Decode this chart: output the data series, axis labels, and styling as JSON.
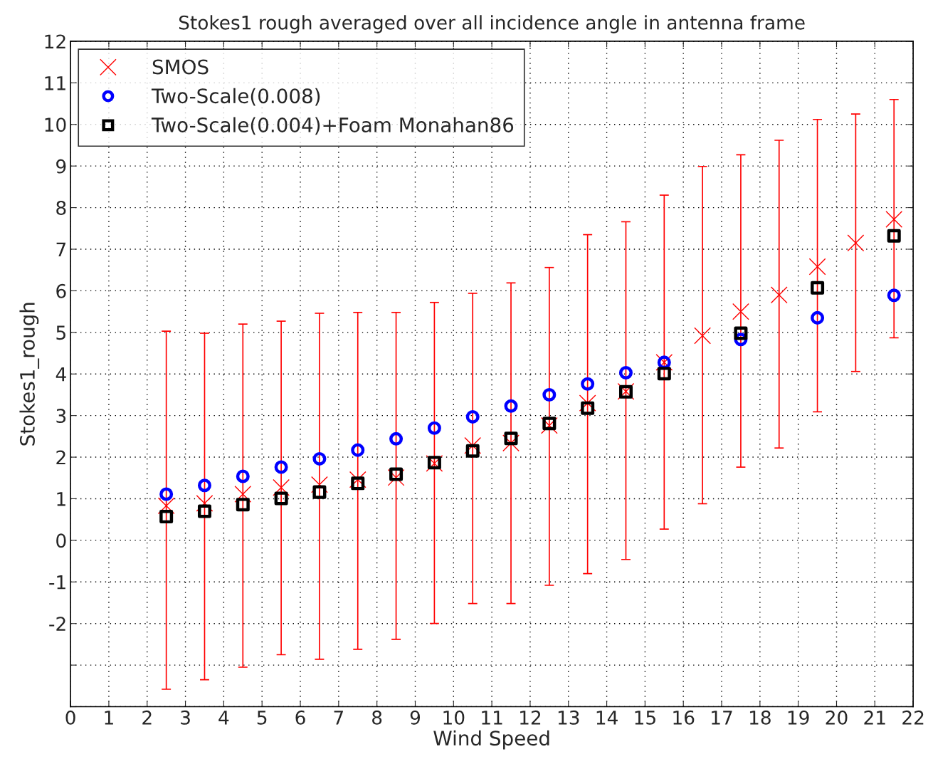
{
  "chart_data": {
    "type": "scatter",
    "title": "Stokes1 rough averaged over all incidence angle in antenna frame",
    "xlabel": "Wind Speed",
    "ylabel": "Stokes1_rough",
    "xlim": [
      0,
      22
    ],
    "xticks": [
      0,
      1,
      2,
      3,
      4,
      5,
      6,
      7,
      8,
      9,
      10,
      11,
      12,
      13,
      14,
      15,
      16,
      17,
      18,
      19,
      20,
      21,
      22
    ],
    "ylim": [
      -4,
      12
    ],
    "yticks": [
      {
        "value": -4,
        "label": null
      },
      {
        "value": -3,
        "label": null
      },
      -2,
      -1,
      0,
      1,
      2,
      3,
      4,
      5,
      6,
      7,
      8,
      9,
      10,
      11,
      12
    ],
    "grid": true,
    "legend": "top left",
    "series": [
      {
        "name": "SMOS",
        "color": "#ff0000",
        "marker": "cross",
        "x": [
          2.5,
          3.5,
          4.5,
          5.5,
          6.5,
          7.5,
          8.5,
          9.5,
          10.5,
          11.5,
          12.5,
          13.5,
          14.5,
          15.5,
          16.5,
          17.5,
          18.5,
          19.5,
          20.5,
          21.5
        ],
        "values": [
          0.83,
          0.89,
          1.11,
          1.27,
          1.34,
          1.46,
          1.51,
          1.85,
          2.28,
          2.34,
          2.76,
          3.3,
          3.58,
          4.28,
          4.92,
          5.5,
          5.9,
          6.58,
          7.15,
          7.72
        ],
        "errors": [
          [
            -3.58,
            5.03
          ],
          [
            -3.35,
            4.98
          ],
          [
            -3.05,
            5.2
          ],
          [
            -2.75,
            5.27
          ],
          [
            -2.86,
            5.46
          ],
          [
            -2.62,
            5.48
          ],
          [
            -2.38,
            5.48
          ],
          [
            -2.0,
            5.72
          ],
          [
            -1.52,
            5.94
          ],
          [
            -1.52,
            6.19
          ],
          [
            -1.08,
            6.56
          ],
          [
            -0.8,
            7.35
          ],
          [
            -0.46,
            7.66
          ],
          [
            0.27,
            8.3
          ],
          [
            0.88,
            8.99
          ],
          [
            1.76,
            9.27
          ],
          [
            2.22,
            9.62
          ],
          [
            3.09,
            10.12
          ],
          [
            4.06,
            10.25
          ],
          [
            4.87,
            10.6
          ]
        ]
      },
      {
        "name": "Two-Scale(0.008)",
        "color": "#0000ff",
        "marker": "circle",
        "x": [
          2.5,
          3.5,
          4.5,
          5.5,
          6.5,
          7.5,
          8.5,
          9.5,
          10.5,
          11.5,
          12.5,
          13.5,
          14.5,
          15.5,
          17.5,
          19.5,
          21.5
        ],
        "values": [
          1.11,
          1.32,
          1.54,
          1.76,
          1.96,
          2.17,
          2.44,
          2.7,
          2.97,
          3.23,
          3.5,
          3.76,
          4.03,
          4.28,
          4.83,
          5.35,
          5.89
        ]
      },
      {
        "name": "Two-Scale(0.004)+Foam Monahan86",
        "color": "#000000",
        "marker": "square",
        "x": [
          2.5,
          3.5,
          4.5,
          5.5,
          6.5,
          7.5,
          8.5,
          9.5,
          10.5,
          11.5,
          12.5,
          13.5,
          14.5,
          15.5,
          17.5,
          19.5,
          21.5
        ],
        "values": [
          0.57,
          0.7,
          0.86,
          1.01,
          1.16,
          1.37,
          1.59,
          1.87,
          2.15,
          2.45,
          2.81,
          3.18,
          3.57,
          4.01,
          4.98,
          6.07,
          7.32
        ]
      }
    ]
  }
}
